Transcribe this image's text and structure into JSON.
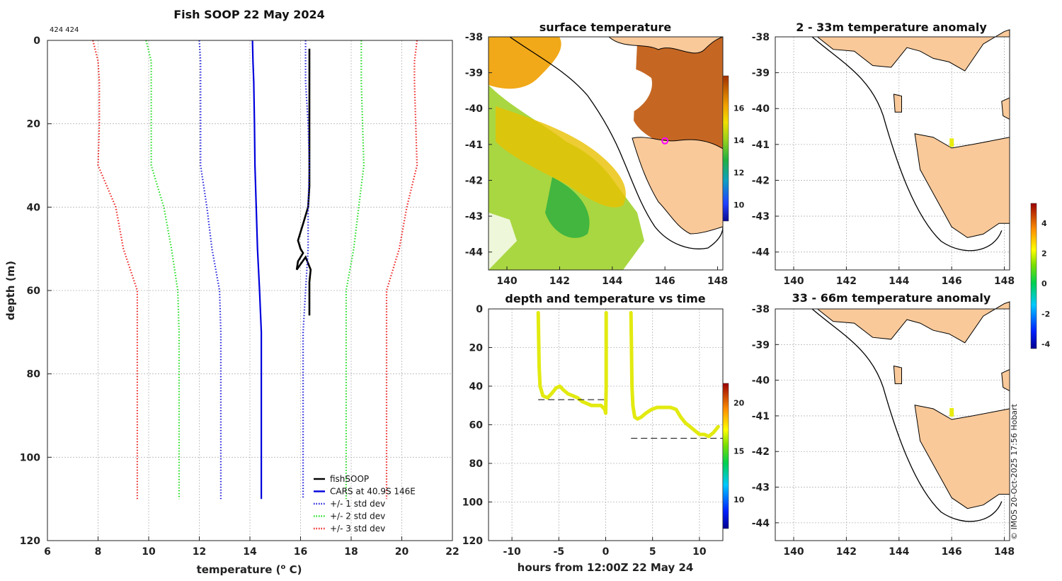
{
  "chart_data": [
    {
      "type": "line",
      "title": "Fish SOOP 22 May 2024",
      "subtitle": "424 424",
      "xlabel": "temperature (",
      "xlabel_sup": "o",
      "xlabel_end": " C)",
      "ylabel": "depth (m)",
      "xlim": [
        6,
        22
      ],
      "ylim": [
        0,
        120
      ],
      "xticks": [
        6,
        8,
        10,
        12,
        14,
        16,
        18,
        20,
        22
      ],
      "yticks": [
        0,
        20,
        40,
        60,
        80,
        100,
        120
      ],
      "series": [
        {
          "name": "fishSOOP",
          "color": "#000000",
          "style": "solid",
          "points": [
            [
              16.35,
              2
            ],
            [
              16.35,
              8
            ],
            [
              16.35,
              15
            ],
            [
              16.35,
              20
            ],
            [
              16.35,
              25
            ],
            [
              16.35,
              30
            ],
            [
              16.35,
              35
            ],
            [
              16.3,
              40
            ],
            [
              16.2,
              42
            ],
            [
              16.1,
              44
            ],
            [
              16.0,
              46
            ],
            [
              15.9,
              48
            ],
            [
              16.0,
              50
            ],
            [
              16.1,
              51
            ],
            [
              16.0,
              52
            ],
            [
              15.9,
              53
            ],
            [
              15.85,
              55
            ],
            [
              16.2,
              52
            ],
            [
              16.4,
              55
            ],
            [
              16.35,
              58
            ],
            [
              16.35,
              62
            ],
            [
              16.35,
              66
            ]
          ]
        },
        {
          "name": "CARS at 40.9S 146E",
          "color": "#0000dd",
          "style": "solid",
          "points": [
            [
              14.1,
              0
            ],
            [
              14.12,
              5
            ],
            [
              14.15,
              10
            ],
            [
              14.18,
              20
            ],
            [
              14.2,
              30
            ],
            [
              14.25,
              40
            ],
            [
              14.3,
              50
            ],
            [
              14.38,
              60
            ],
            [
              14.45,
              70
            ],
            [
              14.45,
              80
            ],
            [
              14.45,
              90
            ],
            [
              14.45,
              100
            ],
            [
              14.45,
              110
            ]
          ]
        },
        {
          "name": "+/- 1 std dev",
          "color": "#2222dd",
          "style": "dotted",
          "points_left": [
            [
              12.0,
              0
            ],
            [
              12.05,
              5
            ],
            [
              12.05,
              10
            ],
            [
              12.05,
              20
            ],
            [
              12.05,
              30
            ],
            [
              12.3,
              40
            ],
            [
              12.5,
              50
            ],
            [
              12.8,
              60
            ],
            [
              12.85,
              70
            ],
            [
              12.85,
              80
            ],
            [
              12.85,
              90
            ],
            [
              12.85,
              100
            ],
            [
              12.85,
              110
            ]
          ],
          "points_right": [
            [
              16.2,
              0
            ],
            [
              16.2,
              5
            ],
            [
              16.2,
              10
            ],
            [
              16.3,
              20
            ],
            [
              16.35,
              30
            ],
            [
              16.3,
              40
            ],
            [
              16.3,
              50
            ],
            [
              16.2,
              60
            ],
            [
              16.1,
              70
            ],
            [
              16.1,
              80
            ],
            [
              16.1,
              90
            ],
            [
              16.1,
              100
            ],
            [
              16.1,
              110
            ]
          ]
        },
        {
          "name": "+/- 2 std dev",
          "color": "#22dd22",
          "style": "dotted",
          "points_left": [
            [
              9.9,
              0
            ],
            [
              10.1,
              5
            ],
            [
              10.1,
              10
            ],
            [
              10.1,
              20
            ],
            [
              10.1,
              30
            ],
            [
              10.6,
              40
            ],
            [
              10.9,
              50
            ],
            [
              11.15,
              60
            ],
            [
              11.2,
              70
            ],
            [
              11.2,
              80
            ],
            [
              11.2,
              90
            ],
            [
              11.2,
              100
            ],
            [
              11.2,
              110
            ]
          ],
          "points_right": [
            [
              18.4,
              0
            ],
            [
              18.4,
              5
            ],
            [
              18.4,
              10
            ],
            [
              18.45,
              20
            ],
            [
              18.5,
              30
            ],
            [
              18.3,
              40
            ],
            [
              18.1,
              50
            ],
            [
              17.8,
              60
            ],
            [
              17.8,
              70
            ],
            [
              17.8,
              80
            ],
            [
              17.8,
              90
            ],
            [
              17.8,
              100
            ],
            [
              17.8,
              110
            ]
          ]
        },
        {
          "name": "+/- 3 std dev",
          "color": "#ee2222",
          "style": "dotted",
          "points_left": [
            [
              7.8,
              0
            ],
            [
              8.0,
              5
            ],
            [
              8.05,
              10
            ],
            [
              8.05,
              20
            ],
            [
              8.0,
              30
            ],
            [
              8.7,
              40
            ],
            [
              9.0,
              50
            ],
            [
              9.55,
              60
            ],
            [
              9.55,
              70
            ],
            [
              9.55,
              80
            ],
            [
              9.55,
              90
            ],
            [
              9.55,
              100
            ],
            [
              9.55,
              110
            ]
          ],
          "points_right": [
            [
              20.6,
              0
            ],
            [
              20.5,
              5
            ],
            [
              20.5,
              10
            ],
            [
              20.55,
              20
            ],
            [
              20.6,
              30
            ],
            [
              20.2,
              40
            ],
            [
              19.9,
              50
            ],
            [
              19.4,
              60
            ],
            [
              19.4,
              70
            ],
            [
              19.4,
              80
            ],
            [
              19.4,
              90
            ],
            [
              19.4,
              100
            ],
            [
              19.4,
              110
            ]
          ]
        }
      ]
    },
    {
      "type": "heatmap",
      "title": "surface temperature",
      "xlim": [
        139.3,
        148.2
      ],
      "ylim": [
        -44.5,
        -38
      ],
      "xticks": [
        140,
        142,
        144,
        146,
        148
      ],
      "yticks": [
        -38,
        -39,
        -40,
        -41,
        -42,
        -43,
        -44
      ],
      "colorbar": {
        "range": [
          9,
          18
        ],
        "ticks": [
          10,
          12,
          14,
          16
        ]
      },
      "marker": {
        "lon": 146.0,
        "lat": -40.9,
        "color": "#ff00ff"
      }
    },
    {
      "type": "scatter",
      "title": "depth and temperature vs time",
      "xlabel": "hours from 12:00Z 22 May 24",
      "xlim": [
        -12.5,
        12.5
      ],
      "ylim": [
        0,
        120
      ],
      "xticks": [
        -10,
        -5,
        0,
        5,
        10
      ],
      "yticks": [
        0,
        20,
        40,
        60,
        80,
        100,
        120
      ],
      "colorbar": {
        "range": [
          7,
          22
        ],
        "ticks": [
          10,
          15,
          20
        ]
      },
      "dashed_levels": [
        {
          "x": [
            -7.2,
            0
          ],
          "depth": 47
        },
        {
          "x": [
            2.7,
            12.5
          ],
          "depth": 67
        }
      ],
      "tracks": [
        [
          [
            -7.2,
            2
          ],
          [
            -7.15,
            15
          ],
          [
            -7.1,
            30
          ],
          [
            -7.0,
            40
          ],
          [
            -6.7,
            45
          ],
          [
            -6.2,
            46
          ],
          [
            -5.8,
            44
          ],
          [
            -5.3,
            41
          ],
          [
            -4.9,
            40
          ],
          [
            -4.5,
            42
          ],
          [
            -4.0,
            44
          ],
          [
            -3.5,
            45
          ],
          [
            -3.0,
            46
          ],
          [
            -2.5,
            48
          ],
          [
            -2.0,
            49
          ],
          [
            -1.5,
            50
          ],
          [
            -1.0,
            50
          ],
          [
            -0.5,
            50
          ],
          [
            -0.1,
            52
          ],
          [
            0,
            54
          ],
          [
            0.05,
            40
          ],
          [
            0.05,
            20
          ],
          [
            0.05,
            2
          ]
        ],
        [
          [
            2.7,
            2
          ],
          [
            2.75,
            20
          ],
          [
            2.8,
            40
          ],
          [
            2.9,
            50
          ],
          [
            3.1,
            56
          ],
          [
            3.4,
            57
          ],
          [
            3.8,
            56
          ],
          [
            4.3,
            54
          ],
          [
            4.9,
            52
          ],
          [
            5.5,
            51
          ],
          [
            6.2,
            51
          ],
          [
            6.9,
            51
          ],
          [
            7.5,
            52
          ],
          [
            8.0,
            56
          ],
          [
            8.5,
            59
          ],
          [
            9.0,
            61
          ],
          [
            9.5,
            63
          ],
          [
            10.0,
            65
          ],
          [
            10.5,
            65
          ],
          [
            11.0,
            66
          ],
          [
            11.5,
            64
          ],
          [
            12.0,
            61
          ]
        ]
      ]
    },
    {
      "type": "heatmap",
      "title": "2 - 33m temperature anomaly",
      "xlim": [
        139.3,
        148.2
      ],
      "ylim": [
        -44.5,
        -38
      ],
      "xticks": [
        140,
        142,
        144,
        146,
        148
      ],
      "yticks": [
        -38,
        -39,
        -40,
        -41,
        -42,
        -43,
        -44
      ],
      "colorbar": {
        "range": [
          -4.3,
          5.3
        ],
        "ticks": [
          -4,
          -2,
          0,
          2,
          4
        ]
      },
      "points": [
        {
          "lon": 146.0,
          "lat": -40.95,
          "value": 1.7
        }
      ]
    },
    {
      "type": "heatmap",
      "title": "33 - 66m temperature anomaly",
      "xlim": [
        139.3,
        148.2
      ],
      "ylim": [
        -44.5,
        -38
      ],
      "xticks": [
        140,
        142,
        144,
        146,
        148
      ],
      "yticks": [
        -38,
        -39,
        -40,
        -41,
        -42,
        -43,
        -44
      ],
      "points": [
        {
          "lon": 146.0,
          "lat": -40.9,
          "value": 1.7
        }
      ]
    }
  ],
  "credit": "© IMOS 20-Oct-2025 17:56 Hobart"
}
